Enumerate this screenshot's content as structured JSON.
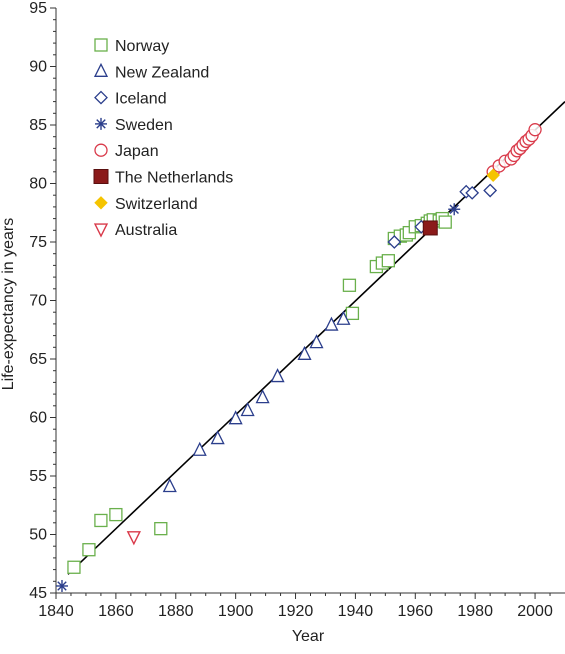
{
  "chart_data": {
    "type": "scatter",
    "title": "",
    "xlabel": "Year",
    "ylabel": "Life-expectancy in years",
    "xlim": [
      1840,
      2010
    ],
    "ylim": [
      45,
      95
    ],
    "xticks": [
      1840,
      1860,
      1880,
      1900,
      1920,
      1940,
      1960,
      1980,
      2000
    ],
    "yticks": [
      45,
      50,
      55,
      60,
      65,
      70,
      75,
      80,
      85,
      90,
      95
    ],
    "grid": false,
    "legend_position": "top-left",
    "series": [
      {
        "name": "Norway",
        "marker": "square",
        "color": "#6ab04c",
        "points": [
          [
            1846,
            47.2
          ],
          [
            1851,
            48.7
          ],
          [
            1855,
            51.2
          ],
          [
            1860,
            51.7
          ],
          [
            1875,
            50.5
          ],
          [
            1938,
            71.3
          ],
          [
            1939,
            68.9
          ],
          [
            1947,
            72.9
          ],
          [
            1949,
            73.2
          ],
          [
            1951,
            73.4
          ],
          [
            1953,
            75.3
          ],
          [
            1955,
            75.5
          ],
          [
            1957,
            75.6
          ],
          [
            1958,
            75.8
          ],
          [
            1960,
            76.3
          ],
          [
            1962,
            76.4
          ],
          [
            1964,
            76.6
          ],
          [
            1965,
            76.8
          ],
          [
            1966,
            76.9
          ],
          [
            1968,
            76.8
          ],
          [
            1969,
            77.0
          ],
          [
            1970,
            76.7
          ]
        ]
      },
      {
        "name": "New Zealand",
        "marker": "triangle-up",
        "color": "#2b3e8c",
        "points": [
          [
            1878,
            54.1
          ],
          [
            1888,
            57.2
          ],
          [
            1894,
            58.2
          ],
          [
            1900,
            59.9
          ],
          [
            1904,
            60.6
          ],
          [
            1909,
            61.7
          ],
          [
            1914,
            63.5
          ],
          [
            1923,
            65.4
          ],
          [
            1927,
            66.4
          ],
          [
            1932,
            67.9
          ],
          [
            1936,
            68.4
          ]
        ]
      },
      {
        "name": "Iceland",
        "marker": "diamond",
        "color": "#2b3e8c",
        "points": [
          [
            1953,
            75.0
          ],
          [
            1962,
            76.3
          ],
          [
            1977,
            79.3
          ],
          [
            1979,
            79.2
          ],
          [
            1985,
            79.4
          ]
        ]
      },
      {
        "name": "Sweden",
        "marker": "asterisk",
        "color": "#2b3e8c",
        "points": [
          [
            1842,
            45.6
          ],
          [
            1973,
            77.8
          ]
        ]
      },
      {
        "name": "Japan",
        "marker": "circle",
        "color": "#d93a4a",
        "points": [
          [
            1986,
            81.0
          ],
          [
            1988,
            81.5
          ],
          [
            1990,
            81.9
          ],
          [
            1992,
            82.1
          ],
          [
            1993,
            82.4
          ],
          [
            1994,
            82.8
          ],
          [
            1995,
            83.0
          ],
          [
            1996,
            83.3
          ],
          [
            1997,
            83.6
          ],
          [
            1998,
            83.8
          ],
          [
            1999,
            84.1
          ],
          [
            2000,
            84.6
          ]
        ]
      },
      {
        "name": "The Netherlands",
        "marker": "filled-square",
        "color": "#8b1a1a",
        "points": [
          [
            1965,
            76.2
          ]
        ]
      },
      {
        "name": "Switzerland",
        "marker": "filled-diamond",
        "color": "#f5c400",
        "points": [
          [
            1986,
            80.7
          ]
        ]
      },
      {
        "name": "Australia",
        "marker": "triangle-down",
        "color": "#d93a4a",
        "points": [
          [
            1866,
            49.8
          ]
        ]
      }
    ],
    "trend_line": {
      "x": [
        1844,
        2010
      ],
      "y": [
        46.6,
        87.0
      ],
      "color": "#000000"
    }
  }
}
